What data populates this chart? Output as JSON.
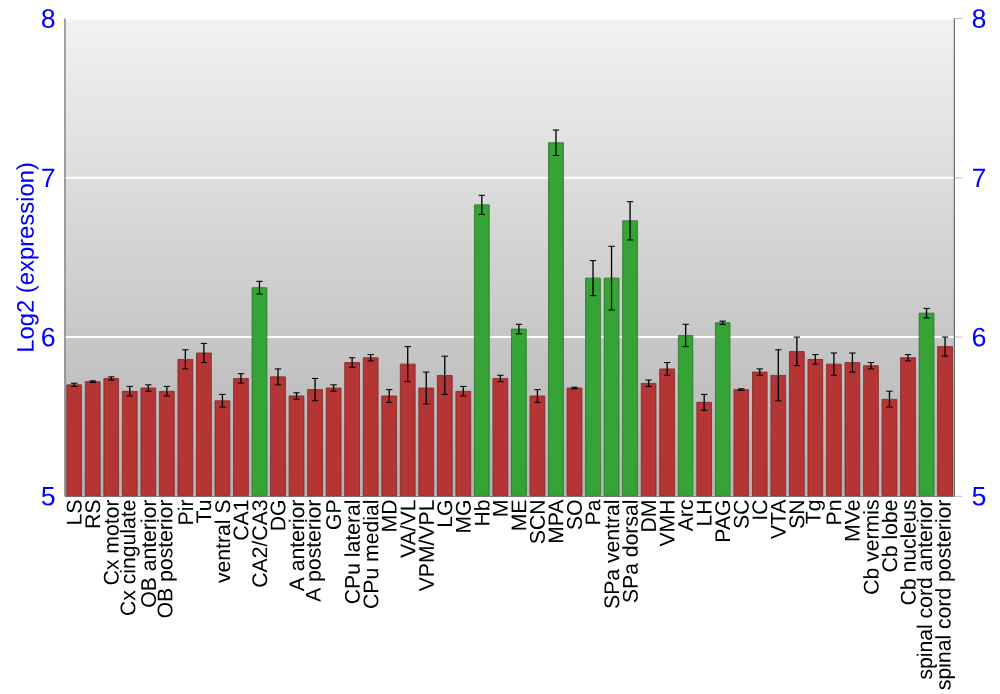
{
  "chart_data": {
    "type": "bar",
    "ylabel": "Log2 (expression)",
    "categories": [
      "LS",
      "RS",
      "Cx motor",
      "Cx cingulate",
      "OB anterior",
      "OB posterior",
      "Pir",
      "Tu",
      "ventral S",
      "CA1",
      "CA2/CA3",
      "DG",
      "A anterior",
      "A posterior",
      "GP",
      "CPu lateral",
      "CPu medial",
      "MD",
      "VA/VL",
      "VPM/VPL",
      "LG",
      "MG",
      "Hb",
      "M",
      "ME",
      "SCN",
      "MPA",
      "SO",
      "Pa",
      "SPa ventral",
      "SPa dorsal",
      "DM",
      "VMH",
      "Arc",
      "LH",
      "PAG",
      "SC",
      "IC",
      "VTA",
      "SN",
      "Tg",
      "Pn",
      "MVe",
      "Cb vermis",
      "Cb lobe",
      "Cb nucleus",
      "spinal cord anterior",
      "spinal cord posterior"
    ],
    "values": [
      5.7,
      5.72,
      5.74,
      5.66,
      5.68,
      5.66,
      5.86,
      5.9,
      5.6,
      5.74,
      6.31,
      5.75,
      5.63,
      5.67,
      5.68,
      5.84,
      5.87,
      5.63,
      5.83,
      5.68,
      5.76,
      5.66,
      6.83,
      5.74,
      6.05,
      5.63,
      7.22,
      5.68,
      6.37,
      6.37,
      6.73,
      5.71,
      5.8,
      6.01,
      5.59,
      6.09,
      5.67,
      5.78,
      5.76,
      5.91,
      5.86,
      5.83,
      5.84,
      5.82,
      5.61,
      5.87,
      6.15,
      5.94
    ],
    "errors": [
      0.01,
      0.005,
      0.01,
      0.03,
      0.02,
      0.03,
      0.06,
      0.06,
      0.04,
      0.03,
      0.04,
      0.05,
      0.02,
      0.07,
      0.02,
      0.03,
      0.02,
      0.04,
      0.11,
      0.1,
      0.12,
      0.03,
      0.06,
      0.02,
      0.03,
      0.04,
      0.08,
      0.005,
      0.11,
      0.2,
      0.12,
      0.02,
      0.04,
      0.07,
      0.05,
      0.01,
      0.005,
      0.02,
      0.16,
      0.09,
      0.03,
      0.07,
      0.06,
      0.02,
      0.05,
      0.02,
      0.03,
      0.06
    ],
    "colors": [
      "#b53535",
      "#b53535",
      "#b53535",
      "#b53535",
      "#b53535",
      "#b53535",
      "#b53535",
      "#b53535",
      "#b53535",
      "#b53535",
      "#36a336",
      "#b53535",
      "#b53535",
      "#b53535",
      "#b53535",
      "#b53535",
      "#b53535",
      "#b53535",
      "#b53535",
      "#b53535",
      "#b53535",
      "#b53535",
      "#36a336",
      "#b53535",
      "#36a336",
      "#b53535",
      "#36a336",
      "#b53535",
      "#36a336",
      "#36a336",
      "#36a336",
      "#b53535",
      "#b53535",
      "#36a336",
      "#b53535",
      "#36a336",
      "#b53535",
      "#b53535",
      "#b53535",
      "#b53535",
      "#b53535",
      "#b53535",
      "#b53535",
      "#b53535",
      "#b53535",
      "#b53535",
      "#36a336",
      "#b53535"
    ],
    "ylim": [
      5,
      8
    ],
    "yticks": [
      5,
      6,
      7,
      8
    ],
    "y2lim": [
      5,
      8
    ],
    "y2ticks": [
      5,
      6,
      7,
      8
    ],
    "grid": "y"
  }
}
